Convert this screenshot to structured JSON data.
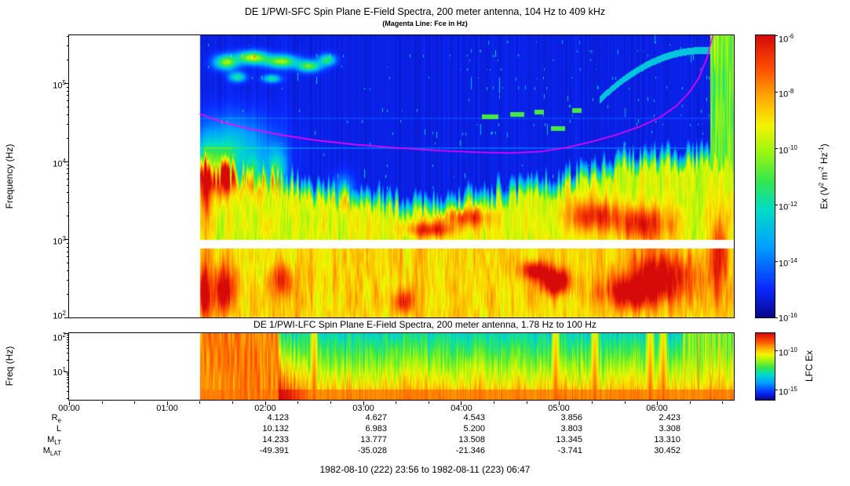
{
  "style": {
    "background": "#FFFFFF",
    "panel_border": "#000000",
    "fce_color": "#FF00FF",
    "colormap_stops": [
      [
        0.0,
        8,
        8,
        140
      ],
      [
        0.1,
        10,
        40,
        255
      ],
      [
        0.25,
        0,
        160,
        255
      ],
      [
        0.38,
        0,
        220,
        200
      ],
      [
        0.48,
        50,
        230,
        80
      ],
      [
        0.58,
        150,
        245,
        20
      ],
      [
        0.68,
        245,
        245,
        0
      ],
      [
        0.78,
        255,
        170,
        0
      ],
      [
        0.88,
        255,
        80,
        0
      ],
      [
        1.0,
        215,
        10,
        10
      ]
    ]
  },
  "header": {
    "title": "DE 1/PWI-SFC  Spin Plane E-Field Spectra, 200 meter antenna, 104 Hz to 409 kHz",
    "subtitle": "(Magenta Line: Fce in Hz)"
  },
  "sfc": {
    "ylabel": "Frequency (Hz)",
    "yticks": [
      {
        "b": "10",
        "e": "5"
      },
      {
        "b": "10",
        "e": "4"
      },
      {
        "b": "10",
        "e": "3"
      },
      {
        "b": "10",
        "e": "2"
      }
    ],
    "colorbar": {
      "ticks": [
        {
          "b": "10",
          "e": "-6"
        },
        {
          "b": "10",
          "e": "-8"
        },
        {
          "b": "10",
          "e": "-10"
        },
        {
          "b": "10",
          "e": "-12"
        },
        {
          "b": "10",
          "e": "-14"
        },
        {
          "b": "10",
          "e": "-16"
        }
      ],
      "label": {
        "p1": "Ex (V",
        "s1": "2",
        "p2": " m",
        "s2": "-2",
        "p3": " Hz",
        "s3": "-1",
        "p4": ")"
      }
    }
  },
  "lfc": {
    "title": "DE 1/PWI-LFC  Spin Plane E-Field Spectra, 200 meter antenna, 1.78 Hz to 100 Hz",
    "ylabel": "Freq (Hz)",
    "yticks": [
      {
        "b": "10",
        "e": "2"
      },
      {
        "b": "10",
        "e": "1"
      }
    ],
    "colorbar": {
      "ticks": [
        {
          "b": "10",
          "e": "-10"
        },
        {
          "b": "10",
          "e": "-15"
        }
      ],
      "label": "LFC Ex"
    }
  },
  "x_axis": {
    "ticks": [
      "00:00",
      "01:00",
      "02:00",
      "03:00",
      "04:00",
      "05:00",
      "06:00"
    ]
  },
  "ephemeris": {
    "rows": [
      {
        "label_main": "R",
        "label_sub": "e",
        "values": [
          "4.123",
          "4.627",
          "4.543",
          "3.856",
          "2.423"
        ]
      },
      {
        "label_main": "L",
        "label_sub": "",
        "values": [
          "10.132",
          "6.983",
          "5.200",
          "3.803",
          "3.308"
        ]
      },
      {
        "label_main": "M",
        "label_sub": "LT",
        "values": [
          "14.233",
          "13.777",
          "13.508",
          "13.345",
          "13.310"
        ]
      },
      {
        "label_main": "M",
        "label_sub": "LAT",
        "values": [
          "-49.391",
          "-35.028",
          "-21.346",
          "-3.741",
          "30.452"
        ]
      }
    ]
  },
  "caption": "1982-08-10 (222) 23:56 to 1982-08-11 (223) 06:47",
  "chart_data": [
    {
      "type": "heatmap",
      "instrument": "DE 1/PWI-SFC",
      "title": "DE 1/PWI-SFC  Spin Plane E-Field Spectra, 200 meter antenna, 104 Hz to 409 kHz",
      "subtitle": "(Magenta Line: Fce in Hz)",
      "ylabel": "Frequency (Hz)",
      "yscale": "log",
      "ylim_hz": [
        100,
        409000
      ],
      "x_start": "1982-08-10 23:56",
      "x_end": "1982-08-11 06:47",
      "x_axis_minutes": [
        0,
        407
      ],
      "x_ticks": [
        "00:00",
        "01:00",
        "02:00",
        "03:00",
        "04:00",
        "05:00",
        "06:00"
      ],
      "data_start_minute": 80,
      "colorbar": {
        "label": "Ex (V^2 m^-2 Hz^-1)",
        "scale": "log",
        "tick_values": [
          1e-06,
          1e-08,
          1e-10,
          1e-12,
          1e-14,
          1e-16
        ]
      },
      "white_band_hz": [
        760,
        990
      ],
      "fce_line_minutes_hz": [
        [
          80,
          40000
        ],
        [
          95,
          31000
        ],
        [
          110,
          26000
        ],
        [
          130,
          21500
        ],
        [
          150,
          18500
        ],
        [
          175,
          16200
        ],
        [
          200,
          14700
        ],
        [
          225,
          13600
        ],
        [
          250,
          12900
        ],
        [
          270,
          12600
        ],
        [
          290,
          13200
        ],
        [
          305,
          14800
        ],
        [
          320,
          17500
        ],
        [
          335,
          21500
        ],
        [
          350,
          27500
        ],
        [
          362,
          36000
        ],
        [
          372,
          50000
        ],
        [
          380,
          75000
        ],
        [
          386,
          115000
        ],
        [
          391,
          210000
        ],
        [
          394,
          360000
        ],
        [
          396,
          520000
        ]
      ],
      "render": {
        "boundary_logf": [
          [
            80,
            3.8
          ],
          [
            120,
            3.65
          ],
          [
            165,
            3.45
          ],
          [
            210,
            3.3
          ],
          [
            260,
            3.45
          ],
          [
            300,
            3.6
          ],
          [
            340,
            3.85
          ],
          [
            380,
            3.95
          ],
          [
            407,
            3.95
          ]
        ],
        "hotspots": [
          [
            83,
            2.3,
            3,
            0.3,
            0.4
          ],
          [
            84,
            3.5,
            3,
            0.6,
            0.25
          ],
          [
            96,
            5.27,
            7,
            0.09,
            0.5
          ],
          [
            112,
            5.33,
            9,
            0.08,
            0.55
          ],
          [
            130,
            5.28,
            10,
            0.08,
            0.5
          ],
          [
            147,
            5.22,
            7,
            0.07,
            0.45
          ],
          [
            103,
            5.08,
            5,
            0.06,
            0.35
          ],
          [
            124,
            5.06,
            5,
            0.05,
            0.35
          ],
          [
            158,
            5.3,
            5,
            0.07,
            0.38
          ],
          [
            100,
            4.15,
            24,
            0.4,
            0.26
          ],
          [
            88,
            3.9,
            13,
            0.3,
            0.3
          ],
          [
            96,
            3.8,
            5,
            0.2,
            0.25
          ],
          [
            113,
            3.85,
            5,
            0.2,
            0.25
          ],
          [
            127,
            3.9,
            6,
            0.25,
            0.3
          ],
          [
            168,
            3.6,
            6,
            0.2,
            0.25
          ],
          [
            222,
            3.12,
            16,
            0.1,
            0.3
          ],
          [
            243,
            3.28,
            14,
            0.12,
            0.28
          ],
          [
            285,
            2.6,
            8,
            0.12,
            0.35
          ],
          [
            298,
            2.45,
            9,
            0.16,
            0.45
          ],
          [
            320,
            3.3,
            16,
            0.2,
            0.3
          ],
          [
            345,
            2.3,
            20,
            0.2,
            0.3
          ],
          [
            352,
            3.2,
            18,
            0.22,
            0.32
          ],
          [
            362,
            2.55,
            22,
            0.28,
            0.33
          ],
          [
            95,
            2.35,
            8,
            0.3,
            0.3
          ],
          [
            130,
            2.5,
            6,
            0.2,
            0.25
          ],
          [
            205,
            2.2,
            6,
            0.15,
            0.28
          ],
          [
            399,
            4.9,
            4,
            0.5,
            0.3
          ],
          [
            398,
            2.8,
            5,
            0.5,
            0.3
          ]
        ],
        "dashes": [
          [
            253,
            263,
            4.57
          ],
          [
            270,
            279,
            4.6
          ],
          [
            285,
            291,
            4.63
          ],
          [
            295,
            304,
            4.42
          ],
          [
            308,
            314,
            4.65
          ]
        ],
        "interference_lines": [
          [
            4.17,
            0.012,
            0.09
          ],
          [
            4.55,
            0.009,
            0.05
          ]
        ],
        "arc": {
          "t_vertex": 388,
          "lf_vertex": 5.42,
          "curv": 0.00016,
          "t_range": [
            325,
            402
          ],
          "halfwidth": 0.045
        },
        "right_edge_start": 393
      }
    },
    {
      "type": "heatmap",
      "instrument": "DE 1/PWI-LFC",
      "title": "DE 1/PWI-LFC  Spin Plane E-Field Spectra, 200 meter antenna, 1.78 Hz to 100 Hz",
      "ylabel": "Freq (Hz)",
      "yscale": "log",
      "ylim_hz": [
        1.78,
        100
      ],
      "x_axis_minutes": [
        0,
        407
      ],
      "data_start_minute": 80,
      "colorbar": {
        "label": "LFC Ex",
        "scale": "log",
        "tick_values": [
          1e-10,
          1e-15
        ]
      },
      "render": {
        "red_zone_minutes": [
          80,
          128
        ],
        "red_columns": [
          150,
          298,
          322,
          356,
          364
        ],
        "spike_zone_start": 376
      }
    }
  ]
}
